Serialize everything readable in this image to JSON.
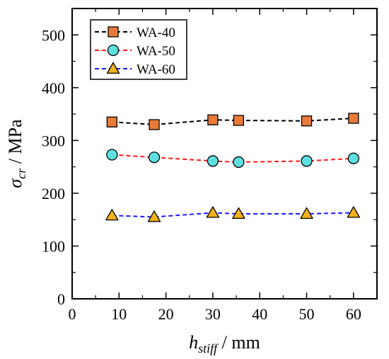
{
  "chart_data": {
    "type": "line",
    "xlabel": {
      "symbol": "h",
      "subscript": "stiff",
      "unit": " / mm"
    },
    "ylabel": {
      "symbol": "σ",
      "subscript": "cr",
      "unit": " / MPa"
    },
    "xlim": [
      0,
      65
    ],
    "ylim": [
      0,
      550
    ],
    "xticks": [
      0,
      10,
      20,
      30,
      40,
      50,
      60
    ],
    "yticks": [
      0,
      100,
      200,
      300,
      400,
      500
    ],
    "legend_position": "top-left",
    "grid": false,
    "series": [
      {
        "name": "WA-40",
        "marker": "square",
        "color": "#e87b3a",
        "line_color": "#000000",
        "x": [
          8.5,
          17.5,
          30,
          35.5,
          50,
          60
        ],
        "y": [
          335,
          330,
          339,
          338,
          337,
          342
        ]
      },
      {
        "name": "WA-50",
        "marker": "circle",
        "color": "#5fe0e0",
        "line_color": "#ff1a1a",
        "x": [
          8.5,
          17.5,
          30,
          35.5,
          50,
          60
        ],
        "y": [
          273,
          268,
          261,
          259,
          261,
          266
        ]
      },
      {
        "name": "WA-60",
        "marker": "triangle",
        "color": "#f2b21b",
        "line_color": "#1a1aff",
        "x": [
          8.5,
          17.5,
          30,
          35.5,
          50,
          60
        ],
        "y": [
          158,
          155,
          163,
          161,
          161,
          163
        ]
      }
    ]
  }
}
